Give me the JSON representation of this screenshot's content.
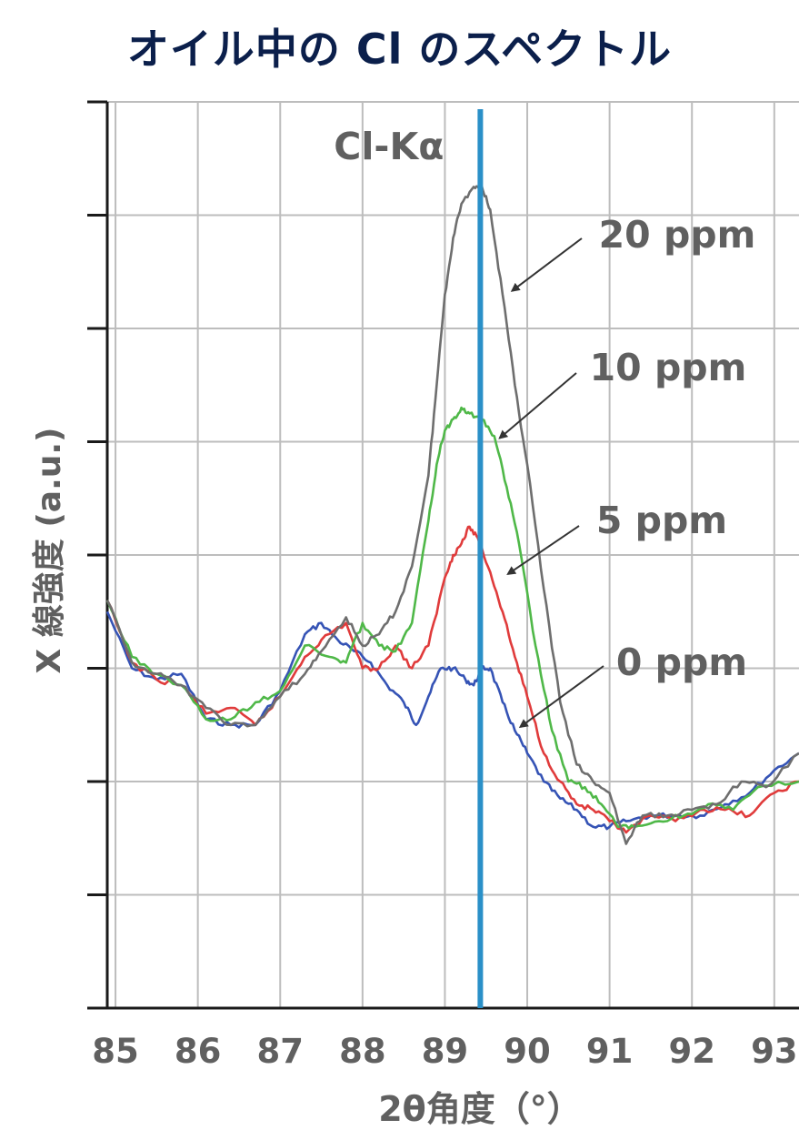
{
  "chart_data": {
    "type": "line",
    "title": "オイル中の Cl のスペクトル",
    "xlabel": "2θ角度（°）",
    "ylabel": "X 線強度 (a.u.)",
    "xlim": [
      84.9,
      93.3
    ],
    "ylim": [
      0,
      8
    ],
    "x_ticks": [
      "85",
      "86",
      "87",
      "88",
      "89",
      "90",
      "91",
      "92",
      "93"
    ],
    "grid": true,
    "peak_line": {
      "label": "Cl-Kα",
      "x": 89.43,
      "color": "#2a90c8"
    },
    "series": [
      {
        "name": "20 ppm",
        "color": "#6e6e6e",
        "x": [
          84.9,
          85.2,
          85.5,
          85.8,
          86.1,
          86.4,
          86.7,
          87.0,
          87.3,
          87.5,
          87.8,
          88.0,
          88.2,
          88.4,
          88.6,
          88.8,
          88.9,
          89.0,
          89.1,
          89.2,
          89.35,
          89.45,
          89.55,
          89.7,
          89.85,
          90.0,
          90.2,
          90.4,
          90.6,
          90.8,
          91.0,
          91.2,
          91.4,
          91.7,
          92.0,
          92.3,
          92.6,
          92.9,
          93.3
        ],
        "y": [
          3.6,
          3.05,
          2.95,
          2.85,
          2.65,
          2.5,
          2.5,
          2.75,
          2.95,
          3.15,
          3.45,
          3.2,
          3.3,
          3.5,
          3.9,
          4.7,
          5.5,
          6.3,
          6.8,
          7.1,
          7.25,
          7.25,
          7.05,
          6.3,
          5.5,
          4.8,
          3.7,
          2.7,
          2.15,
          2.0,
          1.9,
          1.45,
          1.7,
          1.7,
          1.75,
          1.8,
          2.0,
          1.95,
          2.25
        ]
      },
      {
        "name": "10 ppm",
        "color": "#4fb848",
        "x": [
          84.9,
          85.2,
          85.5,
          85.8,
          86.1,
          86.4,
          86.7,
          87.0,
          87.3,
          87.6,
          87.8,
          88.0,
          88.2,
          88.4,
          88.6,
          88.8,
          88.9,
          89.0,
          89.1,
          89.2,
          89.3,
          89.45,
          89.6,
          89.75,
          89.9,
          90.1,
          90.3,
          90.5,
          90.7,
          90.9,
          91.1,
          91.3,
          91.6,
          91.9,
          92.2,
          92.5,
          92.8,
          93.3
        ],
        "y": [
          3.6,
          3.1,
          2.95,
          2.85,
          2.55,
          2.55,
          2.7,
          2.8,
          3.2,
          3.1,
          3.05,
          3.4,
          3.2,
          3.15,
          3.4,
          4.3,
          4.8,
          5.1,
          5.2,
          5.3,
          5.25,
          5.2,
          5.05,
          4.6,
          4.1,
          3.2,
          2.45,
          2.0,
          1.95,
          1.8,
          1.6,
          1.6,
          1.65,
          1.7,
          1.8,
          1.75,
          1.95,
          2.0
        ]
      },
      {
        "name": "5 ppm",
        "color": "#e03b3b",
        "x": [
          84.9,
          85.2,
          85.5,
          85.8,
          86.1,
          86.4,
          86.7,
          87.0,
          87.3,
          87.5,
          87.8,
          88.0,
          88.2,
          88.4,
          88.6,
          88.8,
          89.0,
          89.1,
          89.2,
          89.3,
          89.4,
          89.55,
          89.7,
          89.85,
          90.0,
          90.2,
          90.4,
          90.6,
          90.8,
          91.0,
          91.2,
          91.5,
          91.8,
          92.1,
          92.4,
          92.7,
          93.0,
          93.3
        ],
        "y": [
          3.6,
          3.05,
          2.9,
          2.85,
          2.6,
          2.65,
          2.5,
          2.75,
          3.1,
          3.25,
          3.4,
          3.0,
          3.0,
          3.2,
          3.0,
          3.2,
          3.8,
          4.0,
          4.1,
          4.25,
          4.15,
          3.85,
          3.5,
          3.1,
          2.75,
          2.25,
          2.0,
          1.8,
          1.75,
          1.65,
          1.55,
          1.7,
          1.65,
          1.75,
          1.75,
          1.7,
          1.9,
          2.0
        ]
      },
      {
        "name": "0 ppm",
        "color": "#3553b5",
        "x": [
          84.9,
          85.2,
          85.5,
          85.8,
          86.1,
          86.4,
          86.7,
          87.0,
          87.3,
          87.5,
          87.7,
          87.9,
          88.1,
          88.3,
          88.5,
          88.65,
          88.8,
          88.95,
          89.1,
          89.25,
          89.35,
          89.45,
          89.55,
          89.7,
          89.85,
          90.0,
          90.2,
          90.4,
          90.6,
          90.8,
          91.0,
          91.2,
          91.5,
          91.8,
          92.1,
          92.4,
          92.7,
          93.0,
          93.3
        ],
        "y": [
          3.5,
          3.0,
          2.9,
          2.95,
          2.55,
          2.5,
          2.5,
          2.8,
          3.3,
          3.4,
          3.25,
          3.15,
          3.05,
          2.85,
          2.7,
          2.5,
          2.75,
          3.0,
          3.0,
          2.9,
          2.85,
          3.0,
          3.0,
          2.7,
          2.45,
          2.25,
          2.0,
          1.85,
          1.75,
          1.6,
          1.6,
          1.65,
          1.7,
          1.7,
          1.7,
          1.8,
          1.9,
          2.1,
          2.25
        ]
      }
    ],
    "annotations": [
      {
        "text": "20 ppm",
        "target": [
          89.75,
          6.3
        ]
      },
      {
        "text": "10 ppm",
        "target": [
          89.6,
          5.0
        ]
      },
      {
        "text": "5 ppm",
        "target": [
          89.7,
          3.8
        ]
      },
      {
        "text": "0 ppm",
        "target": [
          89.85,
          2.45
        ]
      }
    ]
  }
}
